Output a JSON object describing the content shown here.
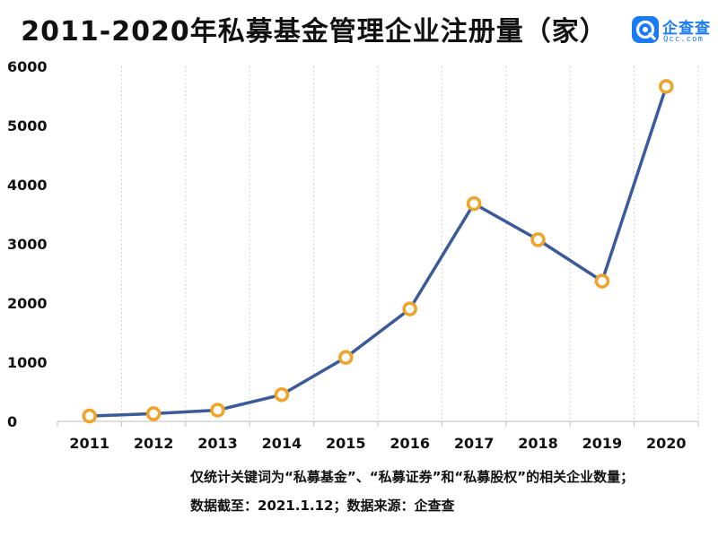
{
  "title": "2011-2020年私募基金管理企业注册量（家）",
  "logo": {
    "name": "企查查",
    "sub": "Qcc.com",
    "color": "#1a7cf5"
  },
  "notes": [
    "仅统计关键词为“私募基金”、“私募证券”和“私募股权”的相关企业数量；",
    "数据截至：2021.1.12；数据来源：企查查"
  ],
  "chart_data": {
    "type": "line",
    "title": "2011-2020年私募基金管理企业注册量（家）",
    "xlabel": "",
    "ylabel": "",
    "categories": [
      "2011",
      "2012",
      "2013",
      "2014",
      "2015",
      "2016",
      "2017",
      "2018",
      "2019",
      "2020"
    ],
    "values": [
      90,
      130,
      190,
      450,
      1080,
      1900,
      3680,
      3070,
      2370,
      5660
    ],
    "ylim": [
      0,
      6000
    ],
    "yticks": [
      0,
      1000,
      2000,
      3000,
      4000,
      5000,
      6000
    ],
    "grid": "vertical dotted",
    "line_color": "#3a5a9c",
    "marker_color": "#f0a326"
  }
}
